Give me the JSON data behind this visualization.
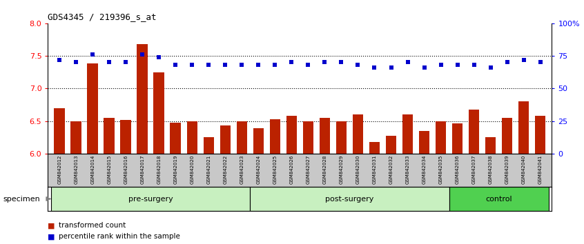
{
  "title": "GDS4345 / 219396_s_at",
  "samples": [
    "GSM842012",
    "GSM842013",
    "GSM842014",
    "GSM842015",
    "GSM842016",
    "GSM842017",
    "GSM842018",
    "GSM842019",
    "GSM842020",
    "GSM842021",
    "GSM842022",
    "GSM842023",
    "GSM842024",
    "GSM842025",
    "GSM842026",
    "GSM842027",
    "GSM842028",
    "GSM842029",
    "GSM842030",
    "GSM842031",
    "GSM842032",
    "GSM842033",
    "GSM842034",
    "GSM842035",
    "GSM842036",
    "GSM842037",
    "GSM842038",
    "GSM842039",
    "GSM842040",
    "GSM842041"
  ],
  "bar_values": [
    6.7,
    6.5,
    7.38,
    6.55,
    6.52,
    7.68,
    7.25,
    6.48,
    6.5,
    6.25,
    6.43,
    6.5,
    6.39,
    6.53,
    6.58,
    6.5,
    6.55,
    6.5,
    6.6,
    6.18,
    6.27,
    6.6,
    6.35,
    6.5,
    6.47,
    6.68,
    6.25,
    6.55,
    6.8,
    6.58
  ],
  "percentile_values": [
    72,
    70,
    76,
    70,
    70,
    76,
    74,
    68,
    68,
    68,
    68,
    68,
    68,
    68,
    70,
    68,
    70,
    70,
    68,
    66,
    66,
    70,
    66,
    68,
    68,
    68,
    66,
    70,
    72,
    70
  ],
  "groups": [
    {
      "label": "pre-surgery",
      "start": 0,
      "end": 11
    },
    {
      "label": "post-surgery",
      "start": 12,
      "end": 23
    },
    {
      "label": "control",
      "start": 24,
      "end": 29
    }
  ],
  "bar_color": "#BB2200",
  "dot_color": "#0000CC",
  "ylim_left": [
    6.0,
    8.0
  ],
  "ylim_right": [
    0,
    100
  ],
  "yticks_left": [
    6.0,
    6.5,
    7.0,
    7.5,
    8.0
  ],
  "yticks_right": [
    0,
    25,
    50,
    75,
    100
  ],
  "ytick_labels_right": [
    "0",
    "25",
    "50",
    "75",
    "100%"
  ],
  "hlines": [
    6.5,
    7.0,
    7.5
  ],
  "pre_color": "#C8F0C0",
  "post_color": "#C8F0C0",
  "ctrl_color": "#50D050",
  "xtick_bg": "#C8C8C8",
  "legend": [
    {
      "label": "transformed count",
      "color": "#BB2200"
    },
    {
      "label": "percentile rank within the sample",
      "color": "#0000CC"
    }
  ],
  "specimen_label": "specimen"
}
